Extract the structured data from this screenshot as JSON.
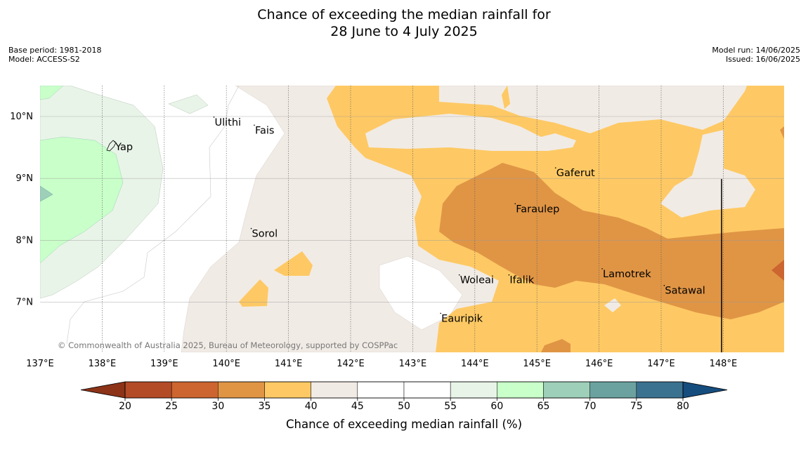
{
  "title": {
    "line1": "Chance of exceeding the median rainfall for",
    "line2": "28 June to 4 July 2025"
  },
  "meta_left": {
    "base_period": "Base period: 1981-2018",
    "model": "Model: ACCESS-S2"
  },
  "meta_right": {
    "model_run": "Model run: 14/06/2025",
    "issued": "Issued: 16/06/2025"
  },
  "map": {
    "lon_range": [
      137,
      149
    ],
    "lat_range": [
      6.2,
      10.5
    ],
    "lon_ticks": [
      "137°E",
      "138°E",
      "139°E",
      "140°E",
      "141°E",
      "142°E",
      "143°E",
      "144°E",
      "145°E",
      "146°E",
      "147°E",
      "148°E"
    ],
    "lat_ticks": [
      "10°N",
      "9°N",
      "8°N",
      "7°N"
    ],
    "places": [
      {
        "name": "Ulithi",
        "lon": 139.8,
        "lat": 9.9
      },
      {
        "name": "Fais",
        "lon": 140.45,
        "lat": 9.77
      },
      {
        "name": "Yap",
        "lon": 138.2,
        "lat": 9.5
      },
      {
        "name": "Gaferut",
        "lon": 145.3,
        "lat": 9.08
      },
      {
        "name": "Faraulep",
        "lon": 144.65,
        "lat": 8.5
      },
      {
        "name": "Sorol",
        "lon": 140.4,
        "lat": 8.1
      },
      {
        "name": "Lamotrek",
        "lon": 146.05,
        "lat": 7.45
      },
      {
        "name": "Satawal",
        "lon": 147.05,
        "lat": 7.18
      },
      {
        "name": "Woleai",
        "lon": 143.75,
        "lat": 7.35
      },
      {
        "name": "Ifalik",
        "lon": 144.55,
        "lat": 7.35
      },
      {
        "name": "Eauripik",
        "lon": 143.45,
        "lat": 6.73
      }
    ],
    "copyright": "© Commonwealth of Australia 2025, Bureau of Meteorology, supported by COSPPac"
  },
  "colorbar": {
    "title": "Chance of exceeding median rainfall (%)",
    "ticks": [
      "20",
      "25",
      "30",
      "35",
      "40",
      "45",
      "50",
      "55",
      "60",
      "65",
      "70",
      "75",
      "80"
    ],
    "colors": [
      "#b34b27",
      "#cc652f",
      "#e09545",
      "#fec964",
      "#f1ebe5",
      "#ffffff",
      "#ffffff",
      "#e9f4e8",
      "#c9ffc9",
      "#9ecfb9",
      "#6ba2a0",
      "#3b7290"
    ],
    "extend_low": "#8c3318",
    "extend_high": "#154d7e"
  }
}
